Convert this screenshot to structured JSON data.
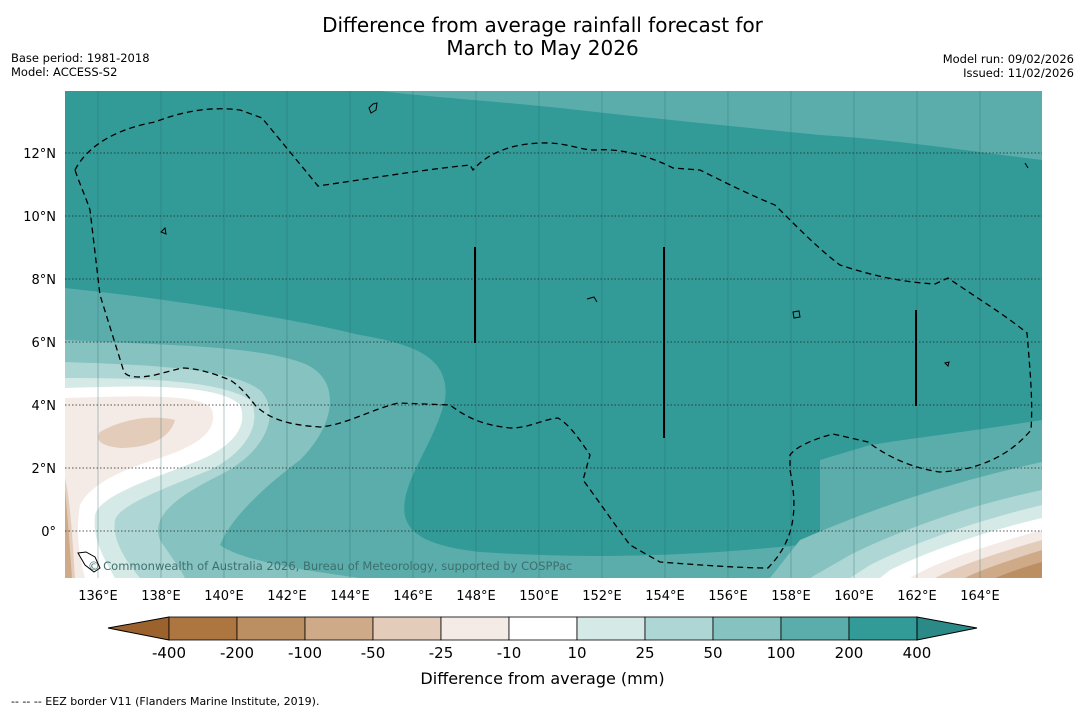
{
  "title_line1": "Difference from average rainfall forecast for",
  "title_line2": "March to May 2026",
  "meta_left": {
    "base_period": "Base period: 1981-2018",
    "model": "Model: ACCESS-S2"
  },
  "meta_right": {
    "model_run": "Model run: 09/02/2026",
    "issued": "Issued: 11/02/2026"
  },
  "map": {
    "lon_ticks": [
      "136°E",
      "138°E",
      "140°E",
      "142°E",
      "144°E",
      "146°E",
      "148°E",
      "150°E",
      "152°E",
      "154°E",
      "156°E",
      "158°E",
      "160°E",
      "162°E",
      "164°E"
    ],
    "lat_ticks": [
      "12°N",
      "10°N",
      "8°N",
      "6°N",
      "4°N",
      "2°N",
      "0°"
    ],
    "credit": "© Commonwealth of Australia 2026, Bureau of Meteorology, supported by COSPPac",
    "colors": {
      "ocean_max": "#329a97",
      "level_200": "#5aadab",
      "level_100": "#85c2c0",
      "level_50": "#aed6d4",
      "level_25": "#d5e9e7",
      "level_10": "#ffffff",
      "level_neg10": "#f4ebe6",
      "level_neg25": "#e3cdba",
      "level_neg50": "#cfaa89",
      "level_neg100": "#bb8f61",
      "level_neg200": "#ad7540",
      "level_neg400": "#9b622d"
    }
  },
  "colorbar": {
    "ticks": [
      "-400",
      "-200",
      "-100",
      "-50",
      "-25",
      "-10",
      "10",
      "25",
      "50",
      "100",
      "200",
      "400"
    ],
    "colors": [
      "#ad7540",
      "#bb8f61",
      "#cfaa89",
      "#e3cdba",
      "#f4ebe6",
      "#ffffff",
      "#d5e9e7",
      "#aed6d4",
      "#85c2c0",
      "#5aadab",
      "#329a97"
    ],
    "end_low": "#9b622d",
    "end_high": "#2b8a87",
    "label": "Difference from average (mm)"
  },
  "footnote": "--  --  -- EEZ border V11 (Flanders Marine Institute, 2019)."
}
